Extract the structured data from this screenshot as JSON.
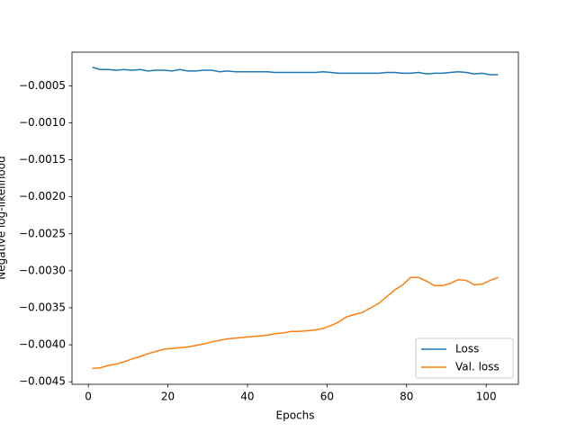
{
  "chart_data": {
    "type": "line",
    "xlabel": "Epochs",
    "ylabel": "Negative log-likelihood",
    "x": [
      1,
      3,
      5,
      7,
      9,
      11,
      13,
      15,
      17,
      19,
      21,
      23,
      25,
      27,
      29,
      31,
      33,
      35,
      37,
      39,
      41,
      43,
      45,
      47,
      49,
      51,
      53,
      55,
      57,
      59,
      61,
      63,
      65,
      67,
      69,
      71,
      73,
      75,
      77,
      79,
      81,
      83,
      85,
      87,
      89,
      91,
      93,
      95,
      97,
      99,
      101,
      103
    ],
    "series": [
      {
        "name": "Loss",
        "color": "#1f77b4",
        "values": [
          -0.00025,
          -0.00028,
          -0.00028,
          -0.00029,
          -0.00028,
          -0.00029,
          -0.00028,
          -0.0003,
          -0.00029,
          -0.00029,
          -0.0003,
          -0.00028,
          -0.0003,
          -0.0003,
          -0.00029,
          -0.00029,
          -0.00031,
          -0.0003,
          -0.00031,
          -0.00031,
          -0.00031,
          -0.00031,
          -0.00031,
          -0.00032,
          -0.00032,
          -0.00032,
          -0.00032,
          -0.00032,
          -0.00032,
          -0.00031,
          -0.00032,
          -0.00033,
          -0.00033,
          -0.00033,
          -0.00033,
          -0.00033,
          -0.00033,
          -0.00032,
          -0.00032,
          -0.00033,
          -0.00033,
          -0.00032,
          -0.00034,
          -0.00033,
          -0.00033,
          -0.00032,
          -0.00031,
          -0.00032,
          -0.00034,
          -0.00033,
          -0.00035,
          -0.00035
        ]
      },
      {
        "name": "Val. loss",
        "color": "#ff7f0e",
        "values": [
          -0.00432,
          -0.00431,
          -0.00428,
          -0.00426,
          -0.00423,
          -0.00419,
          -0.00416,
          -0.00412,
          -0.00409,
          -0.00406,
          -0.00405,
          -0.00404,
          -0.00403,
          -0.00401,
          -0.00399,
          -0.00396,
          -0.00394,
          -0.00392,
          -0.00391,
          -0.0039,
          -0.00389,
          -0.00388,
          -0.00387,
          -0.00385,
          -0.00384,
          -0.00382,
          -0.00382,
          -0.00381,
          -0.0038,
          -0.00378,
          -0.00374,
          -0.00369,
          -0.00362,
          -0.00359,
          -0.00356,
          -0.0035,
          -0.00344,
          -0.00335,
          -0.00326,
          -0.00319,
          -0.00309,
          -0.00309,
          -0.00314,
          -0.0032,
          -0.0032,
          -0.00317,
          -0.00312,
          -0.00313,
          -0.00319,
          -0.00318,
          -0.00313,
          -0.00309
        ]
      }
    ],
    "xlim": [
      -4.1,
      108.1
    ],
    "xticks": [
      0,
      20,
      40,
      60,
      80,
      100
    ],
    "ylim": [
      -0.004534,
      -4.6e-05
    ],
    "yticks": [
      {
        "value": -0.0045,
        "label": "−0.0045"
      },
      {
        "value": -0.004,
        "label": "−0.0040"
      },
      {
        "value": -0.0035,
        "label": "−0.0035"
      },
      {
        "value": -0.003,
        "label": "−0.0030"
      },
      {
        "value": -0.0025,
        "label": "−0.0025"
      },
      {
        "value": -0.002,
        "label": "−0.0020"
      },
      {
        "value": -0.0015,
        "label": "−0.0015"
      },
      {
        "value": -0.001,
        "label": "−0.0010"
      },
      {
        "value": -0.0005,
        "label": "−0.0005"
      }
    ],
    "legend": "lower right",
    "grid": false
  }
}
